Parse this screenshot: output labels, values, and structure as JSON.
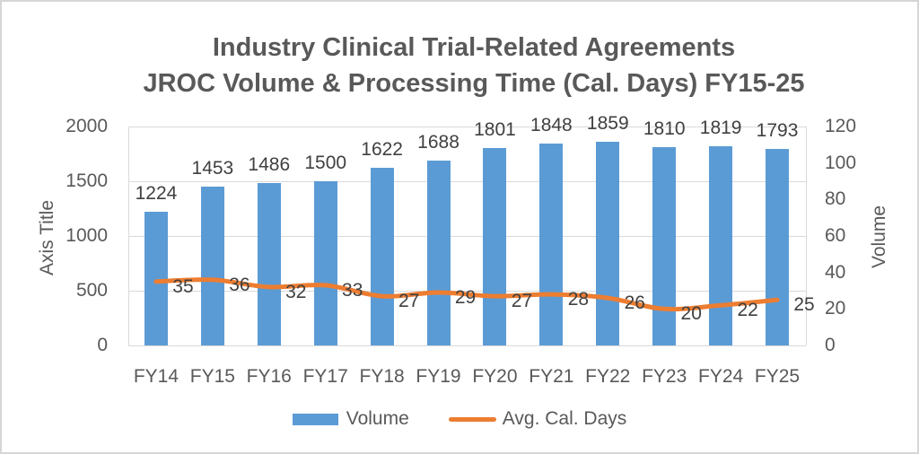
{
  "title": {
    "line1": "Industry Clinical Trial-Related Agreements",
    "line2": "JROC Volume & Processing Time (Cal. Days) FY15-25"
  },
  "chart_data": {
    "type": "combo",
    "categories": [
      "FY14",
      "FY15",
      "FY16",
      "FY17",
      "FY18",
      "FY19",
      "FY20",
      "FY21",
      "FY22",
      "FY23",
      "FY24",
      "FY25"
    ],
    "series": [
      {
        "name": "Volume",
        "type": "bar",
        "axis": "left",
        "color": "#5B9BD5",
        "values": [
          1224,
          1453,
          1486,
          1500,
          1622,
          1688,
          1801,
          1848,
          1859,
          1810,
          1819,
          1793
        ]
      },
      {
        "name": "Avg. Cal. Days",
        "type": "line",
        "axis": "right",
        "color": "#ED7D31",
        "smooth": true,
        "values": [
          35,
          36,
          32,
          33,
          27,
          29,
          27,
          28,
          26,
          20,
          22,
          25
        ]
      }
    ],
    "left_axis": {
      "title": "Axis Title",
      "min": 0,
      "max": 2000,
      "ticks": [
        0,
        500,
        1000,
        1500,
        2000
      ]
    },
    "right_axis": {
      "title": "Volume",
      "min": 0,
      "max": 120,
      "ticks": [
        0,
        20,
        40,
        60,
        80,
        100,
        120
      ]
    },
    "grid": true,
    "legend_position": "bottom",
    "data_labels": true
  },
  "colors": {
    "bar": "#5B9BD5",
    "line": "#ED7D31",
    "grid": "#D9D9D9",
    "text": "#595959",
    "data_label": "#404040",
    "frame": "#D6D6D6"
  }
}
